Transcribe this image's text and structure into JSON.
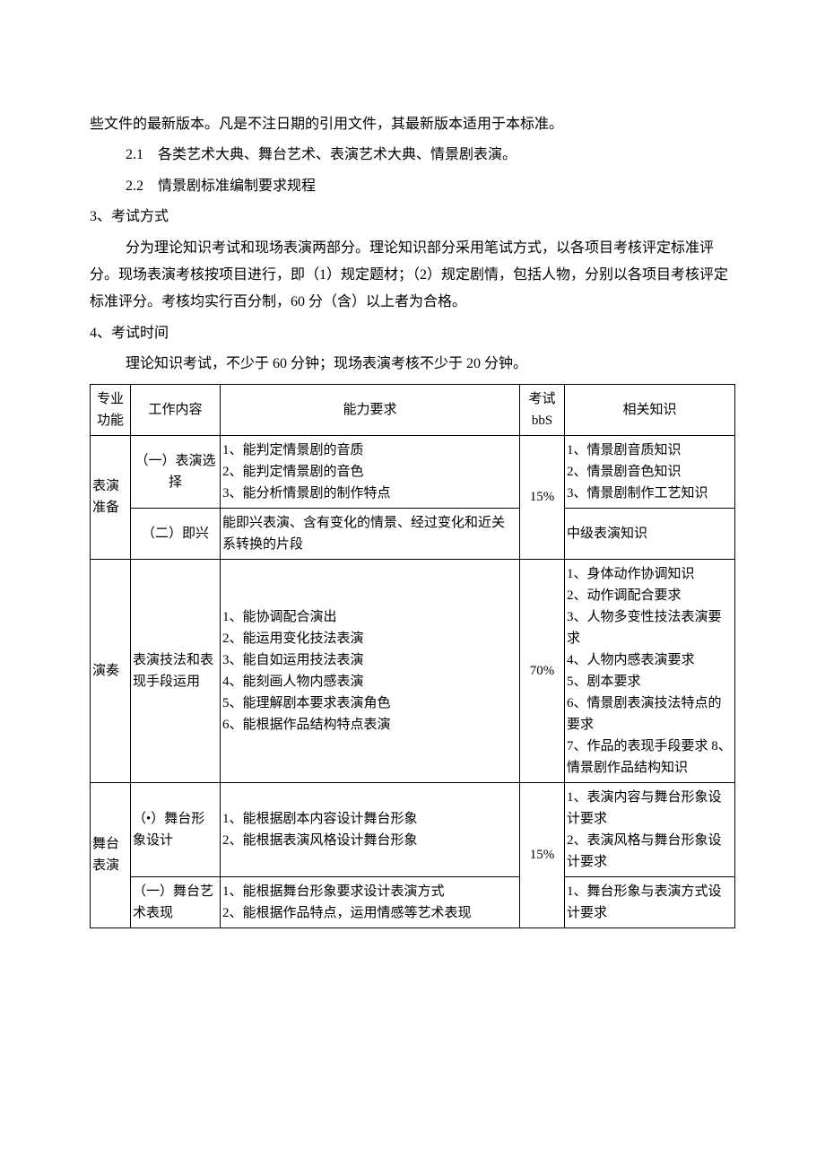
{
  "paragraphs": {
    "p1": "些文件的最新版本。凡是不注日期的引用文件，其最新版本适用于本标准。",
    "p2": "2.1　各类艺术大典、舞台艺术、表演艺术大典、情景剧表演。",
    "p3": "2.2　情景剧标准编制要求规程",
    "p4": "3、考试方式",
    "p5": "分为理论知识考试和现场表演两部分。理论知识部分采用笔试方式，以各项目考核评定标准评分。现场表演考核按项目进行，即（1）规定题材；（2）规定剧情，包括人物，分别以各项目考核评定标准评分。考核均实行百分制，60 分（含）以上者为合格。",
    "p6": "4、考试时间",
    "p7": "理论知识考试，不少于 60 分钟；现场表演考核不少于 20 分钟。"
  },
  "table": {
    "header": {
      "c1": "专业功能",
      "c2": "工作内容",
      "c3": "能力要求",
      "c4": "考试bbS",
      "c5": "相关知识"
    },
    "rows": [
      {
        "func": "表演准备",
        "work": "（一）表演选择",
        "req": "1、能判定情景剧的音质\n2、能判定情景剧的音色\n3、能分析情景剧的制作特点",
        "pct": "15%",
        "know": "1、情景剧音质知识\n2、情景剧音色知识\n3、情景剧制作工艺知识"
      },
      {
        "work": "（二）即兴",
        "req": "能即兴表演、含有变化的情景、经过变化和近关系转换的片段",
        "know": "中级表演知识"
      },
      {
        "func": "演奏",
        "work": "表演技法和表现手段运用",
        "req": "1、能协调配合演出\n2、能运用变化技法表演\n3、能自如运用技法表演\n4、能刻画人物内感表演\n5、能理解剧本要求表演角色\n6、能根据作品结构特点表演",
        "pct": "70%",
        "know": "1、身体动作协调知识\n2、动作调配合要求\n3、人物多变性技法表演要求\n4、人物内感表演要求\n5、剧本要求\n6、情景剧表演技法特点的要求\n7、作品的表现手段要求 8、情景剧作品结构知识"
      },
      {
        "func": "舞台表演",
        "work": "（•）舞台形象设计",
        "req": "1、能根据剧本内容设计舞台形象\n2、能根据表演风格设计舞台形象",
        "pct": "15%",
        "know": "1、表演内容与舞台形象设计要求\n2、表演风格与舞台形象设计要求"
      },
      {
        "work": "（一）舞台艺术表现",
        "req": "1、能根据舞台形象要求设计表演方式\n2、能根据作品特点，运用情感等艺术表现",
        "know": "1、舞台形象与表演方式设计要求"
      }
    ]
  },
  "style": {
    "page_bg": "#ffffff",
    "text_color": "#000000",
    "border_color": "#000000",
    "body_fontsize": 16,
    "table_fontsize": 15
  }
}
